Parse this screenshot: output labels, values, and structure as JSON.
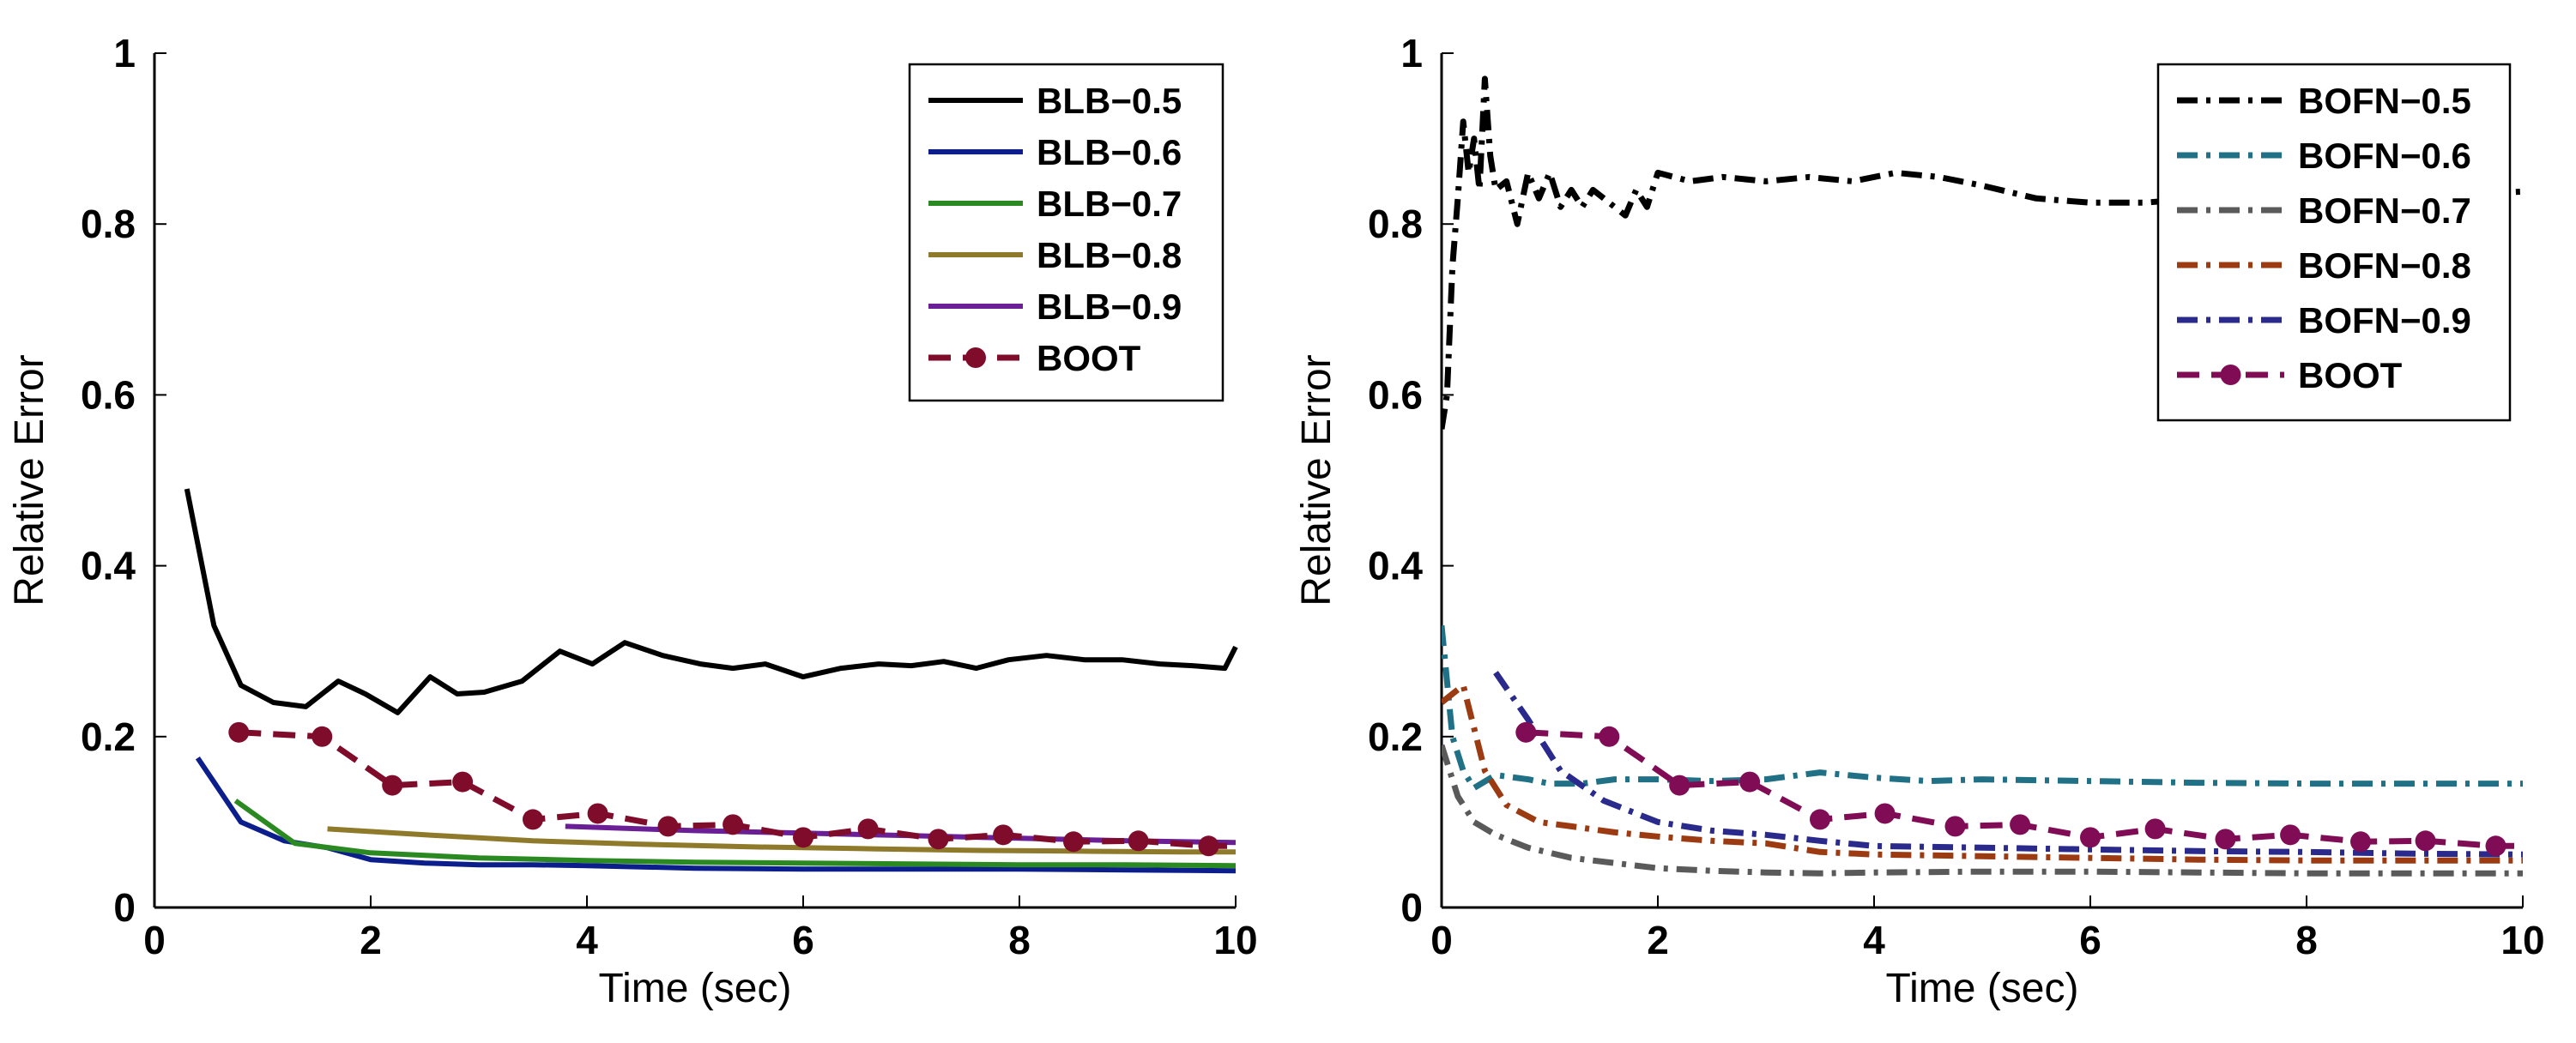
{
  "chart_data": [
    {
      "type": "line",
      "xlabel": "Time (sec)",
      "ylabel": "Relative Error",
      "xlim": [
        0,
        10
      ],
      "ylim": [
        0,
        1
      ],
      "xticks": [
        0,
        2,
        4,
        6,
        8,
        10
      ],
      "yticks": [
        0,
        0.2,
        0.4,
        0.6,
        0.8,
        1
      ],
      "xtick_labels": [
        "0",
        "2",
        "4",
        "6",
        "8",
        "10"
      ],
      "ytick_labels": [
        "0",
        "0.2",
        "0.4",
        "0.6",
        "0.8",
        "1"
      ],
      "legend_position": "top-right",
      "series": [
        {
          "name": "BLB−0.5",
          "color": "#000000",
          "dash": "solid",
          "marker": "none",
          "x": [
            0.3,
            0.55,
            0.8,
            1.1,
            1.4,
            1.7,
            1.95,
            2.25,
            2.55,
            2.8,
            3.05,
            3.4,
            3.75,
            4.05,
            4.35,
            4.7,
            5.05,
            5.35,
            5.65,
            6.0,
            6.35,
            6.7,
            7.0,
            7.3,
            7.6,
            7.9,
            8.25,
            8.6,
            8.95,
            9.3,
            9.6,
            9.9,
            10.0
          ],
          "values": [
            0.49,
            0.33,
            0.26,
            0.24,
            0.235,
            0.265,
            0.25,
            0.228,
            0.27,
            0.25,
            0.252,
            0.265,
            0.3,
            0.285,
            0.31,
            0.295,
            0.285,
            0.28,
            0.285,
            0.27,
            0.28,
            0.285,
            0.283,
            0.288,
            0.28,
            0.29,
            0.295,
            0.29,
            0.29,
            0.285,
            0.283,
            0.28,
            0.305
          ]
        },
        {
          "name": "BLB−0.6",
          "color": "#0b1e8c",
          "dash": "solid",
          "marker": "none",
          "x": [
            0.4,
            0.8,
            1.2,
            1.6,
            2.0,
            2.5,
            3.0,
            3.5,
            4.0,
            5.0,
            6.0,
            7.0,
            8.0,
            9.0,
            10.0
          ],
          "values": [
            0.175,
            0.1,
            0.078,
            0.07,
            0.056,
            0.052,
            0.05,
            0.05,
            0.049,
            0.046,
            0.045,
            0.045,
            0.045,
            0.044,
            0.043
          ]
        },
        {
          "name": "BLB−0.7",
          "color": "#2a8a21",
          "dash": "solid",
          "marker": "none",
          "x": [
            0.75,
            1.3,
            2.0,
            3.0,
            4.0,
            5.0,
            6.0,
            7.0,
            8.0,
            9.0,
            10.0
          ],
          "values": [
            0.125,
            0.075,
            0.064,
            0.058,
            0.055,
            0.053,
            0.052,
            0.051,
            0.05,
            0.05,
            0.049
          ]
        },
        {
          "name": "BLB−0.8",
          "color": "#8e7a2a",
          "dash": "solid",
          "marker": "none",
          "x": [
            1.6,
            2.5,
            3.5,
            4.5,
            5.5,
            6.5,
            7.5,
            8.5,
            9.5,
            10.0
          ],
          "values": [
            0.092,
            0.085,
            0.078,
            0.074,
            0.071,
            0.069,
            0.067,
            0.066,
            0.065,
            0.065
          ]
        },
        {
          "name": "BLB−0.9",
          "color": "#6a1f96",
          "dash": "solid",
          "marker": "none",
          "x": [
            3.8,
            5.0,
            6.0,
            7.0,
            8.0,
            9.0,
            10.0
          ],
          "values": [
            0.095,
            0.09,
            0.087,
            0.084,
            0.081,
            0.078,
            0.076
          ]
        },
        {
          "name": "BOOT",
          "color": "#800c2c",
          "dash": "dashed",
          "marker": "circle",
          "x": [
            0.78,
            1.55,
            2.2,
            2.85,
            3.5,
            4.1,
            4.75,
            5.35,
            6.0,
            6.6,
            7.25,
            7.85,
            8.5,
            9.1,
            9.75,
            10.0
          ],
          "values": [
            0.205,
            0.2,
            0.143,
            0.147,
            0.103,
            0.11,
            0.095,
            0.097,
            0.082,
            0.092,
            0.08,
            0.085,
            0.077,
            0.078,
            0.072,
            0.072
          ]
        }
      ]
    },
    {
      "type": "line",
      "xlabel": "Time (sec)",
      "ylabel": "Relative Error",
      "xlim": [
        0,
        10
      ],
      "ylim": [
        0,
        1
      ],
      "xticks": [
        0,
        2,
        4,
        6,
        8,
        10
      ],
      "yticks": [
        0,
        0.2,
        0.4,
        0.6,
        0.8,
        1
      ],
      "xtick_labels": [
        "0",
        "2",
        "4",
        "6",
        "8",
        "10"
      ],
      "ytick_labels": [
        "0",
        "0.2",
        "0.4",
        "0.6",
        "0.8",
        "1"
      ],
      "legend_position": "top-right",
      "series": [
        {
          "name": "BOFN−0.5",
          "color": "#000000",
          "dash": "dashdot",
          "marker": "none",
          "x": [
            0.0,
            0.05,
            0.1,
            0.15,
            0.2,
            0.25,
            0.3,
            0.35,
            0.4,
            0.45,
            0.5,
            0.6,
            0.7,
            0.8,
            0.9,
            1.0,
            1.1,
            1.2,
            1.3,
            1.4,
            1.5,
            1.6,
            1.7,
            1.8,
            1.9,
            2.0,
            2.3,
            2.6,
            3.0,
            3.4,
            3.8,
            4.2,
            4.6,
            5.0,
            5.5,
            6.0,
            6.5,
            7.0,
            7.5,
            8.0,
            8.5,
            9.0,
            9.5,
            10.0
          ],
          "values": [
            0.56,
            0.6,
            0.75,
            0.83,
            0.92,
            0.86,
            0.9,
            0.84,
            0.97,
            0.88,
            0.84,
            0.85,
            0.8,
            0.86,
            0.83,
            0.86,
            0.82,
            0.84,
            0.82,
            0.84,
            0.83,
            0.82,
            0.81,
            0.84,
            0.82,
            0.86,
            0.85,
            0.855,
            0.85,
            0.855,
            0.85,
            0.86,
            0.855,
            0.845,
            0.83,
            0.825,
            0.825,
            0.83,
            0.83,
            0.835,
            0.83,
            0.835,
            0.835,
            0.838
          ]
        },
        {
          "name": "BOFN−0.6",
          "color": "#207086",
          "dash": "dashdot",
          "marker": "none",
          "x": [
            0.0,
            0.1,
            0.2,
            0.3,
            0.5,
            0.8,
            1.0,
            1.3,
            1.6,
            2.0,
            2.5,
            3.0,
            3.5,
            4.0,
            4.5,
            5.0,
            6.0,
            7.0,
            8.0,
            9.0,
            10.0
          ],
          "values": [
            0.33,
            0.2,
            0.16,
            0.14,
            0.155,
            0.15,
            0.145,
            0.145,
            0.15,
            0.15,
            0.148,
            0.15,
            0.158,
            0.152,
            0.148,
            0.15,
            0.148,
            0.146,
            0.145,
            0.145,
            0.145
          ]
        },
        {
          "name": "BOFN−0.7",
          "color": "#5a5a5a",
          "dash": "dashdot",
          "marker": "none",
          "x": [
            0.0,
            0.15,
            0.3,
            0.5,
            0.8,
            1.2,
            1.6,
            2.0,
            2.5,
            3.0,
            3.5,
            4.0,
            5.0,
            6.0,
            7.0,
            8.0,
            9.0,
            10.0
          ],
          "values": [
            0.19,
            0.13,
            0.1,
            0.085,
            0.07,
            0.058,
            0.052,
            0.046,
            0.043,
            0.041,
            0.04,
            0.041,
            0.042,
            0.042,
            0.041,
            0.04,
            0.04,
            0.04
          ]
        },
        {
          "name": "BOFN−0.8",
          "color": "#9c3a12",
          "dash": "dashdot",
          "marker": "none",
          "x": [
            0.0,
            0.2,
            0.4,
            0.6,
            0.9,
            1.2,
            1.6,
            2.0,
            2.5,
            3.0,
            3.5,
            4.0,
            5.0,
            6.0,
            7.0,
            8.0,
            9.0,
            10.0
          ],
          "values": [
            0.24,
            0.26,
            0.16,
            0.12,
            0.1,
            0.095,
            0.088,
            0.083,
            0.078,
            0.075,
            0.065,
            0.062,
            0.06,
            0.058,
            0.056,
            0.055,
            0.055,
            0.055
          ]
        },
        {
          "name": "BOFN−0.9",
          "color": "#2a2a8c",
          "dash": "dashdot",
          "marker": "none",
          "x": [
            0.5,
            0.8,
            1.1,
            1.5,
            2.0,
            2.5,
            3.0,
            3.5,
            4.0,
            5.0,
            6.0,
            7.0,
            8.0,
            9.0,
            10.0
          ],
          "values": [
            0.275,
            0.22,
            0.16,
            0.125,
            0.1,
            0.09,
            0.085,
            0.078,
            0.072,
            0.07,
            0.068,
            0.066,
            0.065,
            0.063,
            0.062
          ]
        },
        {
          "name": "BOOT",
          "color": "#800c56",
          "dash": "dashed",
          "marker": "circle",
          "x": [
            0.78,
            1.55,
            2.2,
            2.85,
            3.5,
            4.1,
            4.75,
            5.35,
            6.0,
            6.6,
            7.25,
            7.85,
            8.5,
            9.1,
            9.75,
            10.0
          ],
          "values": [
            0.205,
            0.2,
            0.143,
            0.147,
            0.103,
            0.11,
            0.095,
            0.097,
            0.082,
            0.092,
            0.08,
            0.085,
            0.077,
            0.078,
            0.072,
            0.072
          ]
        }
      ]
    }
  ]
}
